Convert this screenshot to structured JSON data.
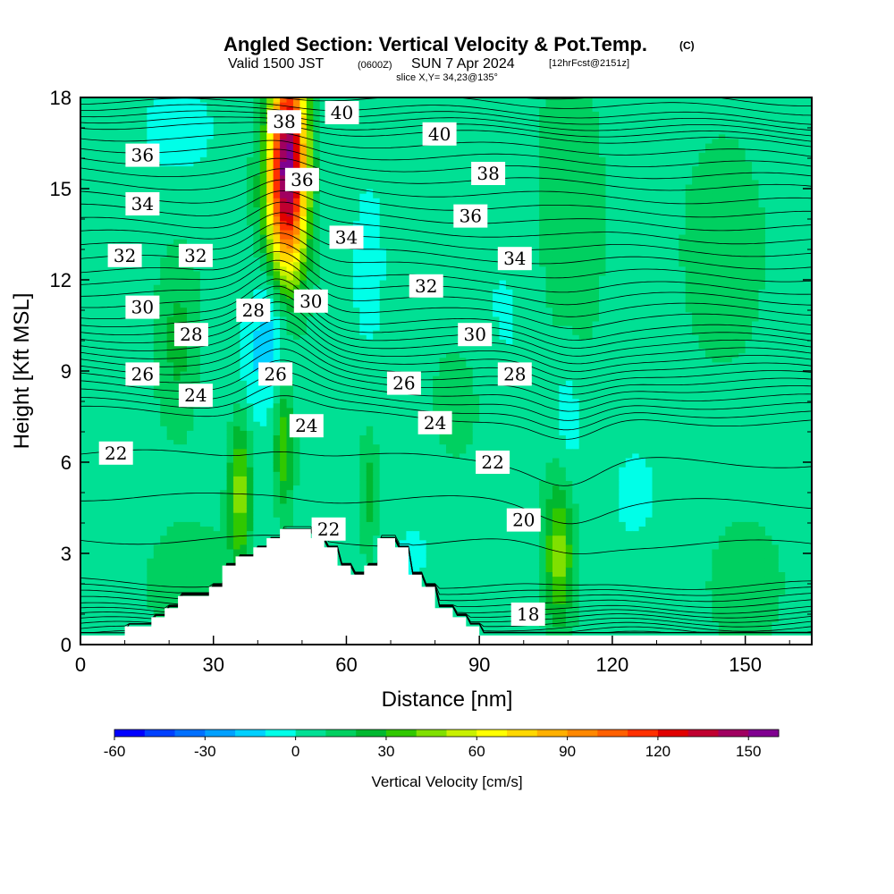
{
  "title": {
    "main": "Angled Section: Vertical Velocity & Pot.Temp.",
    "main_suffix": "(C)",
    "valid_prefix": "Valid 1500 JST",
    "valid_zulu": "(0600Z)",
    "valid_date": "SUN 7 Apr 2024",
    "forecast": "[12hrFcst@2151z]",
    "slice": "slice X,Y= 34,23@135°"
  },
  "chart_data": {
    "type": "heatmap",
    "xlabel": "Distance [nm]",
    "ylabel": "Height [Kft MSL]",
    "xlim": [
      0,
      165
    ],
    "ylim": [
      0,
      18
    ],
    "xticks": [
      0,
      30,
      60,
      90,
      120,
      150
    ],
    "yticks": [
      0,
      3,
      6,
      9,
      12,
      15,
      18
    ],
    "colorbar": {
      "title": "Vertical Velocity [cm/s]",
      "min": -60,
      "max": 160,
      "step": 10,
      "tick_values": [
        -60,
        -30,
        0,
        30,
        60,
        90,
        120,
        150
      ],
      "colors": [
        "#0000ff",
        "#0040ff",
        "#0070ff",
        "#00a0ff",
        "#00d0ff",
        "#00ffe8",
        "#00e094",
        "#00d060",
        "#00b830",
        "#30c800",
        "#80e000",
        "#c8f000",
        "#ffff00",
        "#ffd800",
        "#ffb000",
        "#ff8800",
        "#ff6000",
        "#ff3000",
        "#e00000",
        "#c00030",
        "#a00060",
        "#800090"
      ]
    },
    "terrain": {
      "description_note": "",
      "profile": [
        [
          0,
          0.3
        ],
        [
          10,
          0.3
        ],
        [
          10,
          0.6
        ],
        [
          16,
          0.6
        ],
        [
          16,
          0.9
        ],
        [
          19,
          0.9
        ],
        [
          19,
          1.2
        ],
        [
          22,
          1.2
        ],
        [
          22,
          1.6
        ],
        [
          29,
          1.6
        ],
        [
          29,
          1.9
        ],
        [
          32,
          1.9
        ],
        [
          32,
          2.6
        ],
        [
          35,
          2.6
        ],
        [
          35,
          2.9
        ],
        [
          39,
          2.9
        ],
        [
          39,
          3.2
        ],
        [
          42,
          3.2
        ],
        [
          42,
          3.5
        ],
        [
          45,
          3.5
        ],
        [
          45,
          3.8
        ],
        [
          52,
          3.8
        ],
        [
          52,
          3.5
        ],
        [
          55,
          3.5
        ],
        [
          55,
          3.2
        ],
        [
          58,
          3.2
        ],
        [
          58,
          2.6
        ],
        [
          61,
          2.6
        ],
        [
          61,
          2.3
        ],
        [
          64,
          2.3
        ],
        [
          64,
          2.6
        ],
        [
          67,
          2.6
        ],
        [
          67,
          3.5
        ],
        [
          71,
          3.5
        ],
        [
          71,
          3.2
        ],
        [
          74,
          3.2
        ],
        [
          74,
          2.3
        ],
        [
          77,
          2.3
        ],
        [
          77,
          1.9
        ],
        [
          80,
          1.9
        ],
        [
          80,
          1.2
        ],
        [
          84,
          1.2
        ],
        [
          84,
          0.9
        ],
        [
          87,
          0.9
        ],
        [
          87,
          0.6
        ],
        [
          90,
          0.6
        ],
        [
          90,
          0.3
        ],
        [
          165,
          0.3
        ]
      ]
    },
    "velocity_features": [
      {
        "x": 47,
        "y": 16.5,
        "value": 110,
        "sx": 4,
        "sy": 3.5
      },
      {
        "x": 46,
        "y": 14.5,
        "value": 60,
        "sx": 5,
        "sy": 3
      },
      {
        "x": 36,
        "y": 5,
        "value": 40,
        "sx": 2.5,
        "sy": 2.5
      },
      {
        "x": 46,
        "y": 6.5,
        "value": 35,
        "sx": 2.2,
        "sy": 2
      },
      {
        "x": 65,
        "y": 5,
        "value": 20,
        "sx": 2,
        "sy": 2
      },
      {
        "x": 108,
        "y": 3,
        "value": 40,
        "sx": 3.5,
        "sy": 2.5
      },
      {
        "x": 22,
        "y": 10,
        "value": 18,
        "sx": 5,
        "sy": 3
      },
      {
        "x": 110,
        "y": 14,
        "value": 15,
        "sx": 8,
        "sy": 5
      },
      {
        "x": 145,
        "y": 13,
        "value": 12,
        "sx": 10,
        "sy": 4
      },
      {
        "x": 150,
        "y": 2,
        "value": 15,
        "sx": 8,
        "sy": 2
      },
      {
        "x": 25,
        "y": 2,
        "value": 14,
        "sx": 10,
        "sy": 2
      },
      {
        "x": 85,
        "y": 8,
        "value": 12,
        "sx": 6,
        "sy": 2
      },
      {
        "x": 22,
        "y": 17,
        "value": -12,
        "sx": 8,
        "sy": 1.5
      },
      {
        "x": 43,
        "y": 11,
        "value": -20,
        "sx": 4,
        "sy": 2
      },
      {
        "x": 40,
        "y": 9,
        "value": -12,
        "sx": 6,
        "sy": 2
      },
      {
        "x": 65,
        "y": 12.5,
        "value": -10,
        "sx": 4,
        "sy": 3
      },
      {
        "x": 110,
        "y": 7.5,
        "value": -12,
        "sx": 3,
        "sy": 2.5
      },
      {
        "x": 97,
        "y": 11,
        "value": -6,
        "sx": 10,
        "sy": 4
      },
      {
        "x": 125,
        "y": 5,
        "value": -6,
        "sx": 10,
        "sy": 3
      },
      {
        "x": 75,
        "y": 3,
        "value": -6,
        "sx": 6,
        "sy": 2
      }
    ],
    "isentropes": {
      "interval_c": 1,
      "base_levels_kft": {
        "16": 0.0,
        "18": 0.6,
        "20": 1.2,
        "22": 2.0,
        "24": 7.5,
        "26": 8.6,
        "28": 9.6,
        "30": 10.6,
        "32": 12.0,
        "34": 13.6,
        "36": 15.3,
        "38": 16.8,
        "40": 17.6
      },
      "labels": [
        {
          "text": "40",
          "x": 59,
          "y": 17.5
        },
        {
          "text": "40",
          "x": 81,
          "y": 16.8
        },
        {
          "text": "38",
          "x": 46,
          "y": 17.2
        },
        {
          "text": "38",
          "x": 92,
          "y": 15.5
        },
        {
          "text": "36",
          "x": 14,
          "y": 16.1
        },
        {
          "text": "36",
          "x": 50,
          "y": 15.3
        },
        {
          "text": "36",
          "x": 88,
          "y": 14.1
        },
        {
          "text": "34",
          "x": 14,
          "y": 14.5
        },
        {
          "text": "34",
          "x": 60,
          "y": 13.4
        },
        {
          "text": "34",
          "x": 98,
          "y": 12.7
        },
        {
          "text": "32",
          "x": 10,
          "y": 12.8
        },
        {
          "text": "32",
          "x": 26,
          "y": 12.8
        },
        {
          "text": "32",
          "x": 78,
          "y": 11.8
        },
        {
          "text": "30",
          "x": 14,
          "y": 11.1
        },
        {
          "text": "30",
          "x": 52,
          "y": 11.3
        },
        {
          "text": "30",
          "x": 89,
          "y": 10.2
        },
        {
          "text": "28",
          "x": 39,
          "y": 11.0
        },
        {
          "text": "28",
          "x": 25,
          "y": 10.2
        },
        {
          "text": "28",
          "x": 98,
          "y": 8.9
        },
        {
          "text": "26",
          "x": 14,
          "y": 8.9
        },
        {
          "text": "26",
          "x": 44,
          "y": 8.9
        },
        {
          "text": "26",
          "x": 73,
          "y": 8.6
        },
        {
          "text": "24",
          "x": 26,
          "y": 8.2
        },
        {
          "text": "24",
          "x": 51,
          "y": 7.2
        },
        {
          "text": "24",
          "x": 80,
          "y": 7.3
        },
        {
          "text": "22",
          "x": 8,
          "y": 6.3
        },
        {
          "text": "22",
          "x": 93,
          "y": 6.0
        },
        {
          "text": "22",
          "x": 56,
          "y": 3.8
        },
        {
          "text": "20",
          "x": 100,
          "y": 4.1
        },
        {
          "text": "18",
          "x": 101,
          "y": 1.0
        }
      ]
    }
  }
}
